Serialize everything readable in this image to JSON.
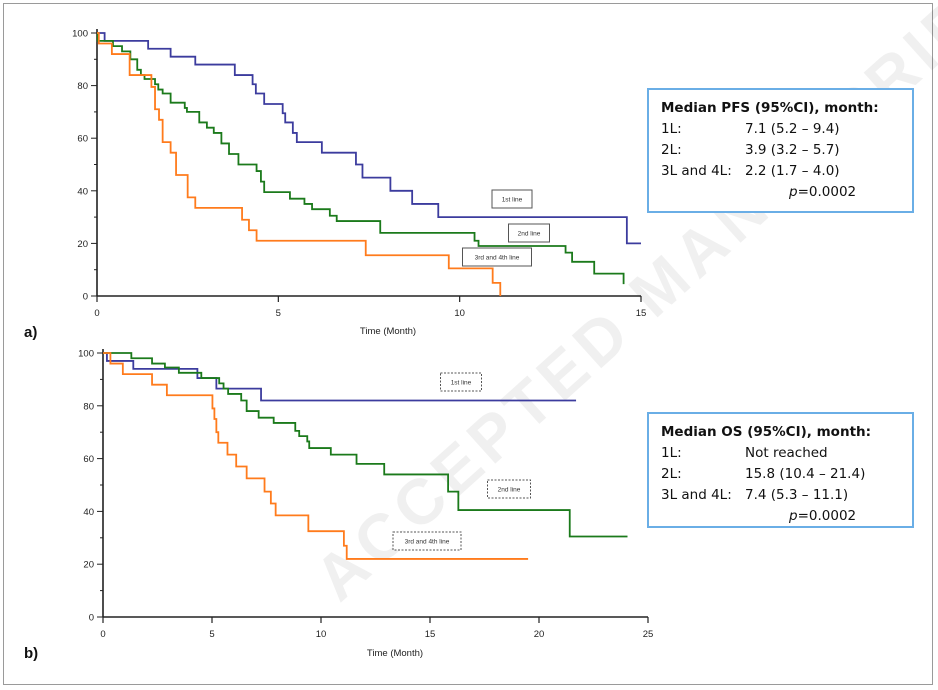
{
  "watermark": "ACCEPTED MANUSCRIPT",
  "colors": {
    "first_line": "#3c3c9e",
    "second_line": "#1b7a1b",
    "third_fourth_line": "#ff7b1c",
    "info_border": "#6aaee6"
  },
  "chart_data": [
    {
      "type": "line",
      "step": true,
      "panel_label": "a)",
      "xlabel": "Time (Month)",
      "ylabel": "",
      "xlim": [
        0,
        15
      ],
      "ylim": [
        0,
        100
      ],
      "xticks": [
        "0",
        "5",
        "10",
        "15"
      ],
      "yticks": [
        "0",
        "20",
        "40",
        "60",
        "80",
        "100"
      ],
      "grid": false,
      "label_box_style": "solid",
      "series": [
        {
          "name": "1st line",
          "color": "#3c3c9e",
          "points": [
            [
              0,
              100
            ],
            [
              0.21,
              97
            ],
            [
              1.41,
              94
            ],
            [
              2.03,
              91
            ],
            [
              2.71,
              88
            ],
            [
              3.8,
              84
            ],
            [
              4.29,
              80.5
            ],
            [
              4.38,
              77
            ],
            [
              4.61,
              73
            ],
            [
              5.12,
              69.5
            ],
            [
              5.19,
              66
            ],
            [
              5.4,
              62
            ],
            [
              5.51,
              58.5
            ],
            [
              6.2,
              54.5
            ],
            [
              7.14,
              50
            ],
            [
              7.32,
              45
            ],
            [
              8.09,
              40
            ],
            [
              8.69,
              35
            ],
            [
              9.41,
              30
            ],
            [
              14.61,
              20
            ],
            [
              15.0,
              20
            ]
          ]
        },
        {
          "name": "2nd line",
          "color": "#1b7a1b",
          "points": [
            [
              0,
              100
            ],
            [
              0.02,
              97
            ],
            [
              0.44,
              95
            ],
            [
              0.69,
              93
            ],
            [
              0.92,
              90
            ],
            [
              1.11,
              86
            ],
            [
              1.21,
              84
            ],
            [
              1.31,
              82.5
            ],
            [
              1.6,
              80.5
            ],
            [
              1.69,
              78.5
            ],
            [
              1.81,
              77
            ],
            [
              2.03,
              73.5
            ],
            [
              2.42,
              71.5
            ],
            [
              2.48,
              70
            ],
            [
              2.82,
              66
            ],
            [
              3.03,
              64
            ],
            [
              3.22,
              62
            ],
            [
              3.43,
              58
            ],
            [
              3.64,
              54
            ],
            [
              3.9,
              50
            ],
            [
              4.4,
              47.5
            ],
            [
              4.52,
              43.5
            ],
            [
              4.61,
              39.5
            ],
            [
              5.32,
              37
            ],
            [
              5.72,
              35
            ],
            [
              5.93,
              33
            ],
            [
              6.42,
              30.5
            ],
            [
              6.61,
              28.5
            ],
            [
              7.81,
              24
            ],
            [
              10.41,
              21
            ],
            [
              10.52,
              19
            ],
            [
              12.92,
              16.5
            ],
            [
              13.1,
              13
            ],
            [
              13.71,
              8.5
            ],
            [
              14.52,
              4.5
            ],
            [
              14.52,
              4.5
            ]
          ]
        },
        {
          "name": "3rd and 4th line",
          "color": "#ff7b1c",
          "points": [
            [
              0,
              100
            ],
            [
              0.05,
              96
            ],
            [
              0.41,
              92
            ],
            [
              0.9,
              84
            ],
            [
              1.5,
              79.5
            ],
            [
              1.6,
              71
            ],
            [
              1.71,
              67
            ],
            [
              1.81,
              58.5
            ],
            [
              2.03,
              54.5
            ],
            [
              2.18,
              46
            ],
            [
              2.5,
              37.5
            ],
            [
              2.71,
              33.5
            ],
            [
              4.0,
              29
            ],
            [
              4.19,
              25
            ],
            [
              4.4,
              21
            ],
            [
              7.41,
              15.5
            ],
            [
              9.7,
              10.5
            ],
            [
              10.91,
              5
            ],
            [
              11.12,
              0
            ],
            [
              11.12,
              0
            ]
          ]
        }
      ]
    },
    {
      "type": "line",
      "step": true,
      "panel_label": "b)",
      "xlabel": "Time (Month)",
      "ylabel": "",
      "xlim": [
        0,
        25
      ],
      "ylim": [
        0,
        100
      ],
      "xticks": [
        "0",
        "5",
        "10",
        "15",
        "20",
        "25"
      ],
      "yticks": [
        "0",
        "20",
        "40",
        "60",
        "80",
        "100"
      ],
      "grid": false,
      "label_box_style": "dashed",
      "series": [
        {
          "name": "1st line",
          "color": "#3c3c9e",
          "points": [
            [
              0,
              100
            ],
            [
              0.18,
              97
            ],
            [
              1.39,
              94
            ],
            [
              4.33,
              90.5
            ],
            [
              5.2,
              86.5
            ],
            [
              7.25,
              82
            ],
            [
              21.7,
              82
            ]
          ]
        },
        {
          "name": "2nd line",
          "color": "#1b7a1b",
          "points": [
            [
              0,
              100
            ],
            [
              1.3,
              98
            ],
            [
              2.25,
              96
            ],
            [
              2.84,
              94.5
            ],
            [
              3.48,
              92.5
            ],
            [
              4.51,
              90.5
            ],
            [
              5.33,
              88.5
            ],
            [
              5.53,
              86.5
            ],
            [
              5.74,
              84.5
            ],
            [
              6.34,
              82
            ],
            [
              6.59,
              78
            ],
            [
              7.14,
              75.5
            ],
            [
              7.83,
              73.5
            ],
            [
              8.82,
              70.5
            ],
            [
              9.0,
              68.5
            ],
            [
              9.37,
              66.5
            ],
            [
              9.46,
              64
            ],
            [
              10.45,
              61.5
            ],
            [
              11.63,
              58
            ],
            [
              12.9,
              54
            ],
            [
              15.83,
              47.5
            ],
            [
              16.3,
              40.5
            ],
            [
              21.41,
              30.5
            ],
            [
              24.06,
              30.5
            ]
          ]
        },
        {
          "name": "3rd and 4th line",
          "color": "#ff7b1c",
          "points": [
            [
              0,
              100
            ],
            [
              0.34,
              96
            ],
            [
              0.91,
              92
            ],
            [
              2.25,
              88
            ],
            [
              2.93,
              84
            ],
            [
              5.02,
              79
            ],
            [
              5.11,
              75
            ],
            [
              5.2,
              70
            ],
            [
              5.29,
              66
            ],
            [
              5.71,
              61.5
            ],
            [
              6.11,
              57
            ],
            [
              6.59,
              52.5
            ],
            [
              7.41,
              47.5
            ],
            [
              7.7,
              43
            ],
            [
              7.92,
              38.5
            ],
            [
              9.42,
              32.5
            ],
            [
              11.05,
              27
            ],
            [
              11.18,
              22
            ],
            [
              19.5,
              22
            ]
          ]
        }
      ]
    }
  ],
  "info_boxes": [
    {
      "title": "Median PFS (95%CI), month:",
      "rows": [
        {
          "key": "1L:",
          "value": "7.1 (5.2 – 9.4)"
        },
        {
          "key": "2L:",
          "value": "3.9 (3.2 – 5.7)"
        },
        {
          "key": "3L and 4L:",
          "value": "2.2 (1.7 – 4.0)"
        }
      ],
      "p_label": "p",
      "p_value": "=0.0002"
    },
    {
      "title": "Median OS (95%CI), month:",
      "rows": [
        {
          "key": "1L:",
          "value": "Not reached"
        },
        {
          "key": "2L:",
          "value": "15.8 (10.4 – 21.4)"
        },
        {
          "key": "3L and 4L:",
          "value": "7.4 (5.3 – 11.1)"
        }
      ],
      "p_label": "p",
      "p_value": "=0.0002"
    }
  ]
}
